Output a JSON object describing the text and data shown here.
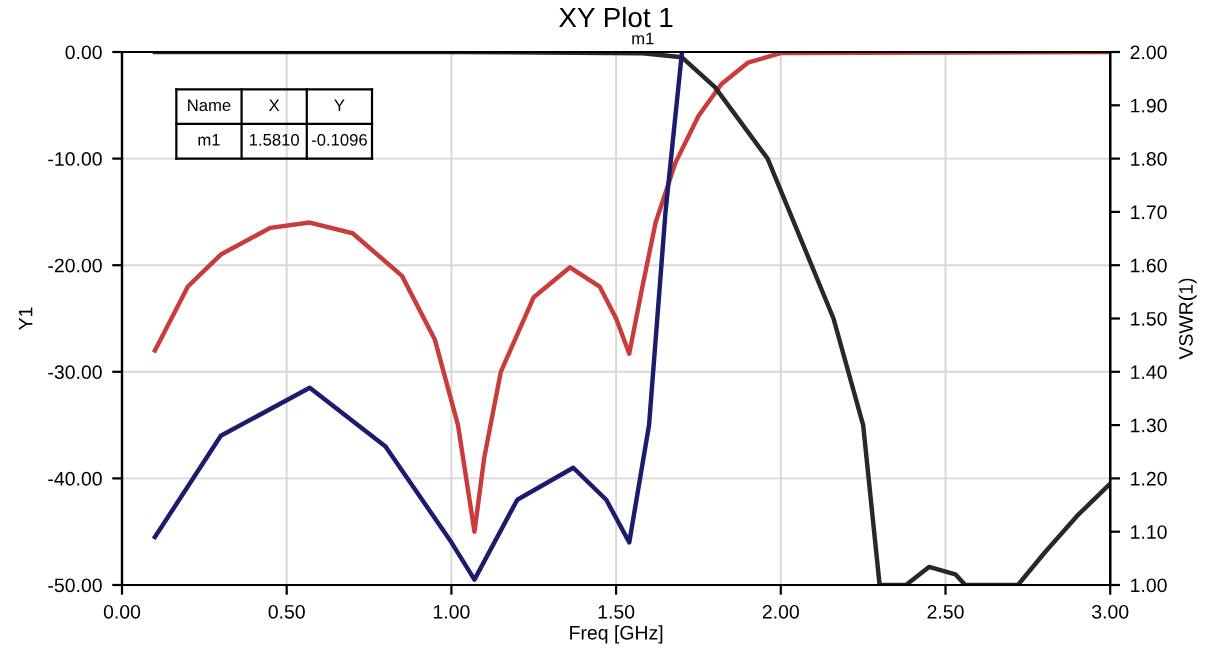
{
  "chart_data": {
    "type": "line",
    "title": "XY Plot 1",
    "xlabel": "Freq [GHz]",
    "ylabel": "Y1",
    "y2label": "VSWR(1)",
    "xlim": [
      0,
      3.0
    ],
    "xticks": [
      {
        "value": 0,
        "label": "0.00"
      },
      {
        "value": 0.5,
        "label": "0.50"
      },
      {
        "value": 1.0,
        "label": "1.00"
      },
      {
        "value": 1.5,
        "label": "1.50"
      },
      {
        "value": 2.0,
        "label": "2.00"
      },
      {
        "value": 2.5,
        "label": "2.50"
      },
      {
        "value": 3.0,
        "label": "3.00"
      }
    ],
    "ylim": [
      -50,
      0
    ],
    "yticks": [
      {
        "value": -50,
        "label": "-50.00"
      },
      {
        "value": -40,
        "label": "-40.00"
      },
      {
        "value": -30,
        "label": "-30.00"
      },
      {
        "value": -20,
        "label": "-20.00"
      },
      {
        "value": -10,
        "label": "-10.00"
      },
      {
        "value": 0,
        "label": "0.00"
      }
    ],
    "y2lim": [
      1.0,
      2.0
    ],
    "y2ticks": [
      {
        "value": 1.0,
        "label": "1.00"
      },
      {
        "value": 1.1,
        "label": "1.10"
      },
      {
        "value": 1.2,
        "label": "1.20"
      },
      {
        "value": 1.3,
        "label": "1.30"
      },
      {
        "value": 1.4,
        "label": "1.40"
      },
      {
        "value": 1.5,
        "label": "1.50"
      },
      {
        "value": 1.6,
        "label": "1.60"
      },
      {
        "value": 1.7,
        "label": "1.70"
      },
      {
        "value": 1.8,
        "label": "1.80"
      },
      {
        "value": 1.9,
        "label": "1.90"
      },
      {
        "value": 2.0,
        "label": "2.00"
      }
    ],
    "grid": true,
    "legend": false,
    "line_style": "solid",
    "marker": "none",
    "series": [
      {
        "color": "#c83c3c",
        "x": [
          0.1,
          0.2,
          0.3,
          0.45,
          0.57,
          0.7,
          0.85,
          0.95,
          1.02,
          1.07,
          1.1,
          1.15,
          1.25,
          1.36,
          1.45,
          1.5,
          1.54,
          1.58,
          1.62,
          1.68,
          1.75,
          1.82,
          1.9,
          2.0,
          3.0
        ],
        "values": [
          -28,
          -22,
          -19,
          -16.5,
          -16,
          -17,
          -21,
          -27,
          -35,
          -45,
          -38,
          -30,
          -23,
          -20.2,
          -22,
          -25,
          -28.3,
          -22,
          -16,
          -10.4,
          -6,
          -3,
          -1,
          -0.1,
          0
        ]
      },
      {
        "color": "#282828",
        "x": [
          0.1,
          1.0,
          1.581,
          1.7,
          1.8,
          1.96,
          2.16,
          2.25,
          2.3,
          2.38,
          2.45,
          2.53,
          2.56,
          2.72,
          2.8,
          2.9,
          3.0
        ],
        "values": [
          0,
          0,
          -0.1096,
          -0.5,
          -3.3,
          -10,
          -25,
          -35,
          -50,
          -50,
          -48.3,
          -49,
          -50,
          -50,
          -47,
          -43.5,
          -40.5
        ]
      },
      {
        "color": "#1c1c6e",
        "axis": "y2",
        "x": [
          0.1,
          0.3,
          0.57,
          0.8,
          1.0,
          1.07,
          1.2,
          1.37,
          1.47,
          1.54,
          1.6,
          1.65,
          1.7
        ],
        "values": [
          1.09,
          1.28,
          1.37,
          1.26,
          1.08,
          1.01,
          1.16,
          1.22,
          1.16,
          1.08,
          1.3,
          1.7,
          2.0
        ]
      }
    ],
    "annotations": [
      "Name",
      "X",
      "Y",
      "m1",
      "1.5810",
      "-0.1096",
      {
        "text": "m1",
        "x": 1.581,
        "y": -0.1096
      }
    ]
  }
}
